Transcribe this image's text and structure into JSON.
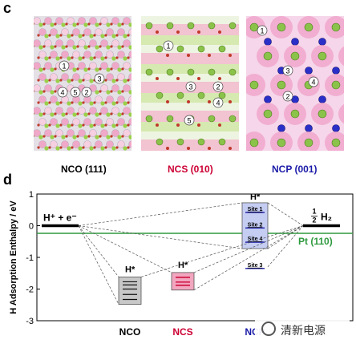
{
  "panel_c_label": "c",
  "panel_d_label": "d",
  "crystals": [
    {
      "caption": "NCO (111)",
      "caption_color": "#000000",
      "bg": "#e5e0e6",
      "site_labels": [
        "1",
        "4",
        "5",
        "2",
        "3"
      ]
    },
    {
      "caption": "NCS (010)",
      "caption_color": "#cc0033",
      "bg": "#eef4e2",
      "site_labels": [
        "1",
        "2",
        "3",
        "4",
        "5"
      ]
    },
    {
      "caption": "NCP (001)",
      "caption_color": "#1a1aa8",
      "bg": "#f6d6ea",
      "site_labels": [
        "1",
        "3",
        "2",
        "4"
      ]
    }
  ],
  "chart_data": {
    "type": "energy-level diagram",
    "ylabel": "H Adsorption Enthalpy / eV",
    "ylim": [
      -3,
      1
    ],
    "yticks": [
      "1",
      "0",
      "-1",
      "-2",
      "-3"
    ],
    "categories": [
      "NCO",
      "NCS",
      "NCP"
    ],
    "category_colors": [
      "#000000",
      "#cc0033",
      "#1a1aa8"
    ],
    "reference_left": {
      "label": "H⁺ + e⁻",
      "value": 0
    },
    "reference_right": {
      "label_num": "1",
      "label_den": "2",
      "label_species": "H₂",
      "value": 0
    },
    "pt_line": {
      "label": "Pt (110)",
      "value": -0.24,
      "color": "#2e9a3e"
    },
    "hstar_label": "H*",
    "nco_levels": [
      -1.77,
      -1.87,
      -2.0,
      -2.17,
      -2.33
    ],
    "ncs_levels": [
      -1.63,
      -1.78,
      -1.88
    ],
    "ncp_sites": [
      {
        "label": "Site 1",
        "value": 0.47
      },
      {
        "label": "Site 2",
        "value": -0.02
      },
      {
        "label": "Site 4",
        "value": -0.47
      },
      {
        "label": "Site 3",
        "value": -1.3
      }
    ],
    "colors": {
      "axis": "#000000",
      "nco_box": "#c8c8c8",
      "ncs_box": "#f2a6bf",
      "ncs_level": "#cc0033",
      "ncp_box": "#c5cdf2",
      "ncp_level": "#1a1aa8",
      "connector": "#555555"
    }
  },
  "watermark": {
    "text": "清新电源",
    "icon": "wechat-icon"
  }
}
